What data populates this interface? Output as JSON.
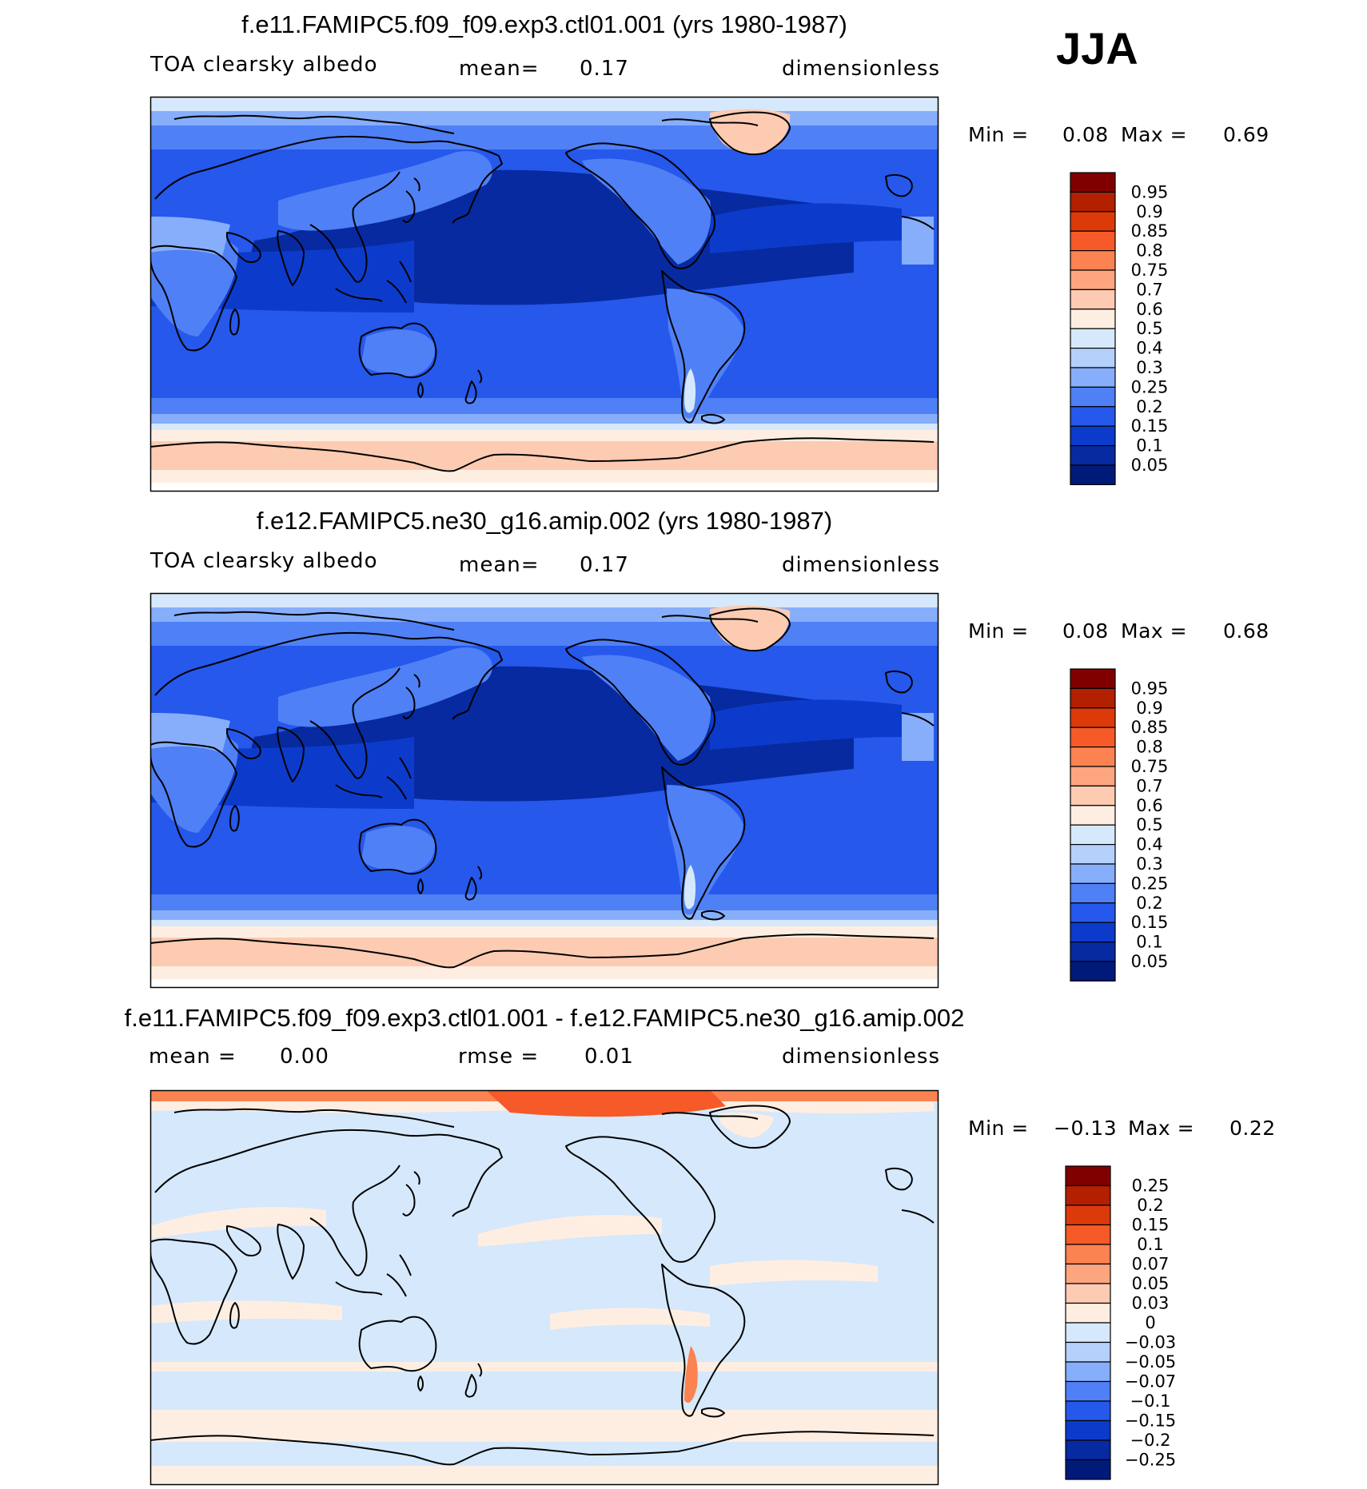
{
  "season_label": "JJA",
  "panels": [
    {
      "title": "f.e11.FAMIPC5.f09_f09.exp3.ctl01.001 (yrs 1980-1987)",
      "left_label": "TOA clearsky albedo",
      "stat_label": "mean=",
      "stat_value": "0.17",
      "units": "dimensionless",
      "min_label": "Min =",
      "min_value": "0.08",
      "max_label": "Max =",
      "max_value": "0.69",
      "palette": "abs",
      "colorbar": {
        "labels": [
          "0.95",
          "0.9",
          "0.85",
          "0.8",
          "0.75",
          "0.7",
          "0.6",
          "0.5",
          "0.4",
          "0.3",
          "0.25",
          "0.2",
          "0.15",
          "0.1",
          "0.05"
        ],
        "colors": [
          "#800000",
          "#b22000",
          "#dd3a0a",
          "#f55a28",
          "#fb8251",
          "#fca57f",
          "#fdcbb2",
          "#feeee2",
          "#d6e8fb",
          "#b4d0fb",
          "#86aefb",
          "#4f80f5",
          "#2558eb",
          "#0c3bcc",
          "#072aa0",
          "#001a7a"
        ]
      }
    },
    {
      "title": "f.e12.FAMIPC5.ne30_g16.amip.002 (yrs 1980-1987)",
      "left_label": "TOA clearsky albedo",
      "stat_label": "mean=",
      "stat_value": "0.17",
      "units": "dimensionless",
      "min_label": "Min =",
      "min_value": "0.08",
      "max_label": "Max =",
      "max_value": "0.68",
      "palette": "abs",
      "colorbar": {
        "labels": [
          "0.95",
          "0.9",
          "0.85",
          "0.8",
          "0.75",
          "0.7",
          "0.6",
          "0.5",
          "0.4",
          "0.3",
          "0.25",
          "0.2",
          "0.15",
          "0.1",
          "0.05"
        ],
        "colors": [
          "#800000",
          "#b22000",
          "#dd3a0a",
          "#f55a28",
          "#fb8251",
          "#fca57f",
          "#fdcbb2",
          "#feeee2",
          "#d6e8fb",
          "#b4d0fb",
          "#86aefb",
          "#4f80f5",
          "#2558eb",
          "#0c3bcc",
          "#072aa0",
          "#001a7a"
        ]
      }
    },
    {
      "title": "f.e11.FAMIPC5.f09_f09.exp3.ctl01.001 - f.e12.FAMIPC5.ne30_g16.amip.002",
      "left_label": "mean =",
      "left_value": "0.00",
      "stat_label": "rmse =",
      "stat_value": "0.01",
      "units": "dimensionless",
      "min_label": "Min =",
      "min_value": "−0.13",
      "max_label": "Max =",
      "max_value": "0.22",
      "palette": "diff",
      "colorbar": {
        "labels": [
          "0.25",
          "0.2",
          "0.15",
          "0.1",
          "0.07",
          "0.05",
          "0.03",
          "0",
          "−0.03",
          "−0.05",
          "−0.07",
          "−0.1",
          "−0.15",
          "−0.2",
          "−0.25"
        ],
        "colors": [
          "#800000",
          "#b22000",
          "#dd3a0a",
          "#f55a28",
          "#fb8251",
          "#fca57f",
          "#fdcbb2",
          "#feeee2",
          "#d6e8fb",
          "#b4d0fb",
          "#86aefb",
          "#4f80f5",
          "#2558eb",
          "#0c3bcc",
          "#072aa0",
          "#001a7a"
        ]
      }
    }
  ],
  "palette_colors": {
    "ocean_deep": "#072aa0",
    "ocean_mid": "#0c3bcc",
    "band_blue": "#2558eb",
    "land_blue": "#4f80f5",
    "light_blue": "#86aefb",
    "pale_blue": "#d6e8fb",
    "peach": "#fdcbb2",
    "cream": "#feeee2",
    "diff_base": "#d6e8fb",
    "diff_pos": "#feeee2",
    "diff_high": "#fb8251",
    "diff_top": "#f55a28"
  }
}
